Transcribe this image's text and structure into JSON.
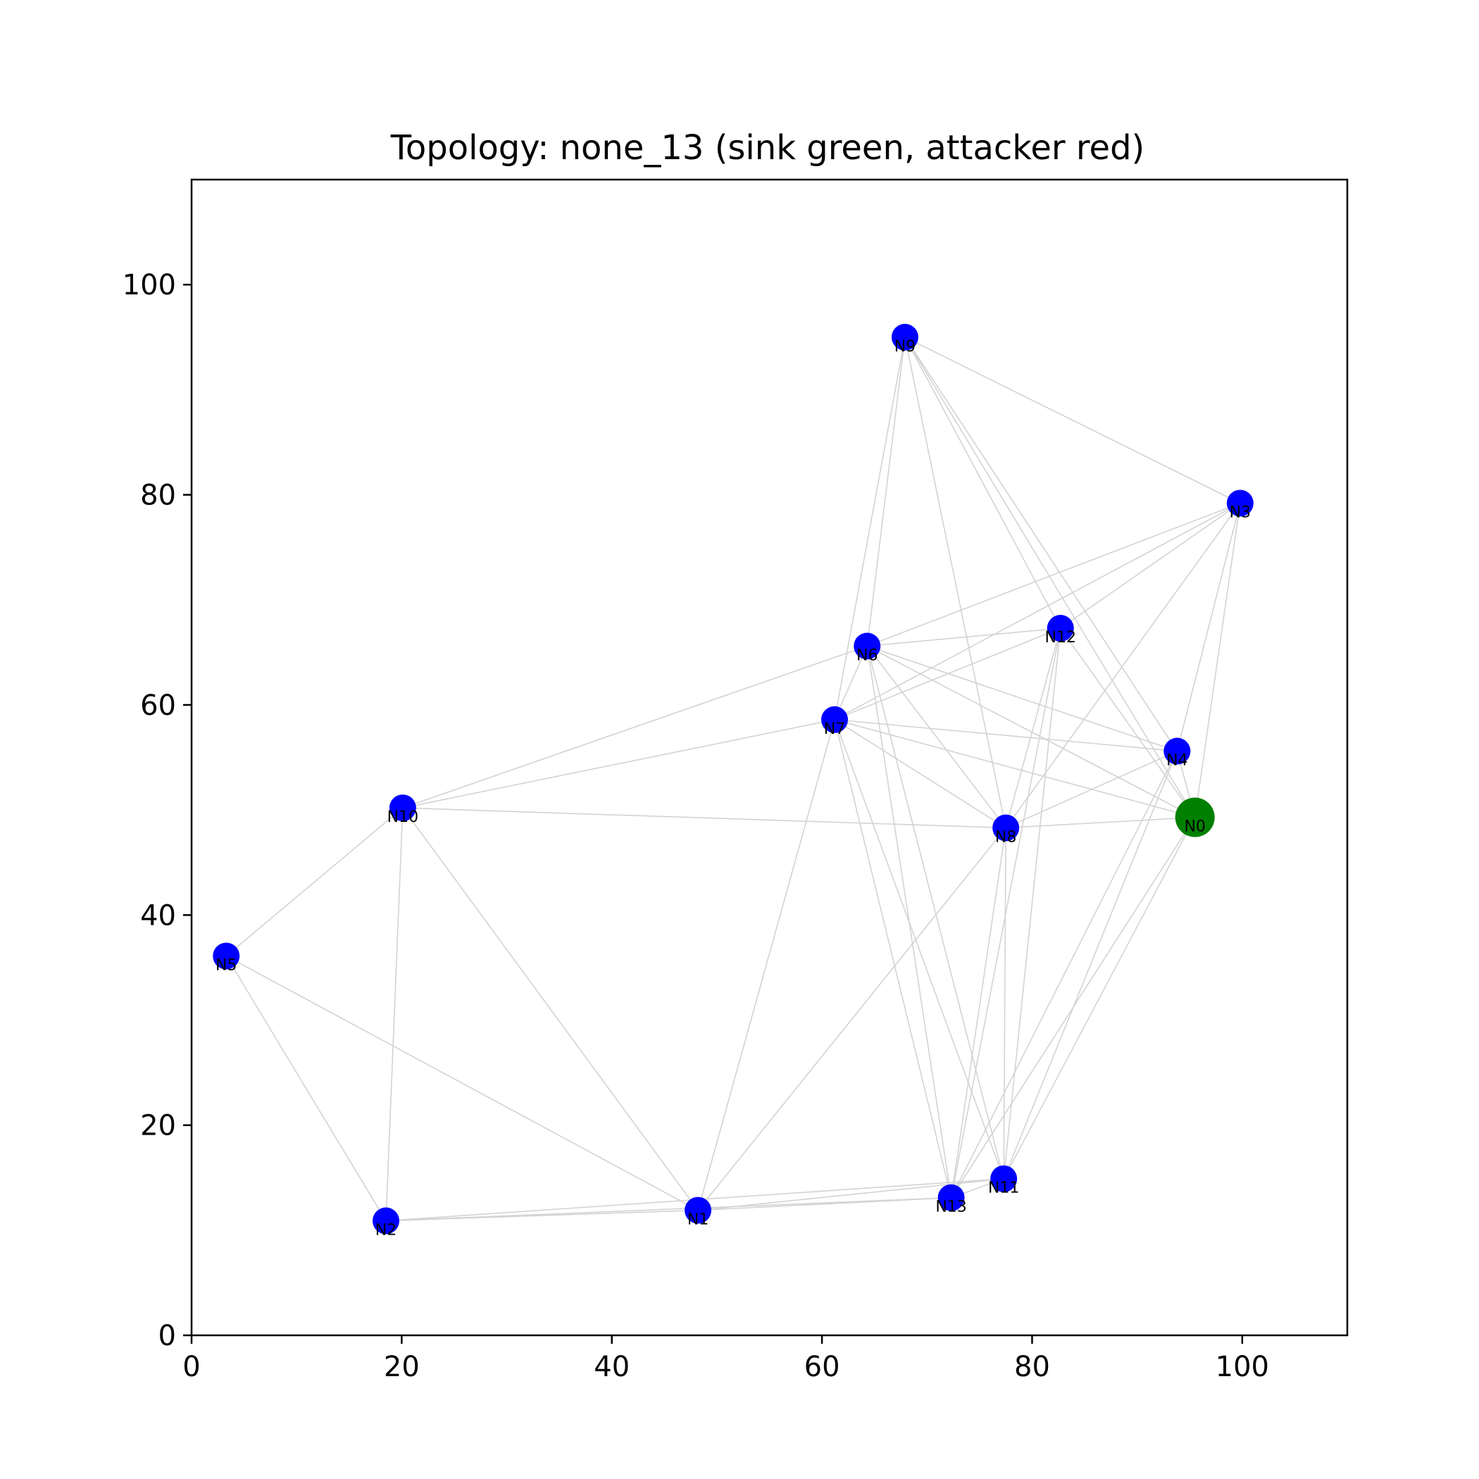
{
  "chart_data": {
    "type": "scatter",
    "title": "Topology: none_13 (sink green, attacker red)",
    "xlabel": "",
    "ylabel": "",
    "xlim": [
      0,
      110
    ],
    "ylim": [
      0,
      110
    ],
    "xticks": [
      "0",
      "20",
      "40",
      "60",
      "80",
      "100"
    ],
    "yticks": [
      "0",
      "20",
      "40",
      "60",
      "80",
      "100"
    ],
    "grid": false,
    "colors": {
      "node": "#0000ff",
      "sink": "#008000",
      "edge": "#d3d3d3",
      "axis": "#000000"
    },
    "nodes": [
      {
        "id": "N0",
        "x": 95.5,
        "y": 49.3,
        "role": "sink"
      },
      {
        "id": "N1",
        "x": 48.2,
        "y": 11.9,
        "role": "node"
      },
      {
        "id": "N2",
        "x": 18.5,
        "y": 10.9,
        "role": "node"
      },
      {
        "id": "N3",
        "x": 99.8,
        "y": 79.2,
        "role": "node"
      },
      {
        "id": "N4",
        "x": 93.8,
        "y": 55.6,
        "role": "node"
      },
      {
        "id": "N5",
        "x": 3.3,
        "y": 36.1,
        "role": "node"
      },
      {
        "id": "N6",
        "x": 64.3,
        "y": 65.6,
        "role": "node"
      },
      {
        "id": "N7",
        "x": 61.2,
        "y": 58.6,
        "role": "node"
      },
      {
        "id": "N8",
        "x": 77.5,
        "y": 48.3,
        "role": "node"
      },
      {
        "id": "N9",
        "x": 67.9,
        "y": 95.0,
        "role": "node"
      },
      {
        "id": "N10",
        "x": 20.1,
        "y": 50.2,
        "role": "node"
      },
      {
        "id": "N11",
        "x": 77.3,
        "y": 14.9,
        "role": "node"
      },
      {
        "id": "N12",
        "x": 82.7,
        "y": 67.3,
        "role": "node"
      },
      {
        "id": "N13",
        "x": 72.3,
        "y": 13.1,
        "role": "node"
      }
    ],
    "edges": [
      [
        "N9",
        "N6"
      ],
      [
        "N9",
        "N7"
      ],
      [
        "N9",
        "N8"
      ],
      [
        "N9",
        "N3"
      ],
      [
        "N9",
        "N4"
      ],
      [
        "N9",
        "N0"
      ],
      [
        "N9",
        "N12"
      ],
      [
        "N3",
        "N6"
      ],
      [
        "N3",
        "N7"
      ],
      [
        "N3",
        "N12"
      ],
      [
        "N3",
        "N4"
      ],
      [
        "N3",
        "N0"
      ],
      [
        "N3",
        "N8"
      ],
      [
        "N12",
        "N6"
      ],
      [
        "N12",
        "N7"
      ],
      [
        "N12",
        "N0"
      ],
      [
        "N12",
        "N13"
      ],
      [
        "N12",
        "N11"
      ],
      [
        "N12",
        "N8"
      ],
      [
        "N6",
        "N7"
      ],
      [
        "N6",
        "N4"
      ],
      [
        "N6",
        "N0"
      ],
      [
        "N6",
        "N8"
      ],
      [
        "N6",
        "N13"
      ],
      [
        "N6",
        "N11"
      ],
      [
        "N6",
        "N10"
      ],
      [
        "N7",
        "N4"
      ],
      [
        "N7",
        "N0"
      ],
      [
        "N7",
        "N8"
      ],
      [
        "N7",
        "N13"
      ],
      [
        "N7",
        "N11"
      ],
      [
        "N7",
        "N1"
      ],
      [
        "N7",
        "N10"
      ],
      [
        "N4",
        "N8"
      ],
      [
        "N4",
        "N13"
      ],
      [
        "N4",
        "N11"
      ],
      [
        "N4",
        "N0"
      ],
      [
        "N8",
        "N0"
      ],
      [
        "N8",
        "N13"
      ],
      [
        "N8",
        "N11"
      ],
      [
        "N8",
        "N1"
      ],
      [
        "N8",
        "N10"
      ],
      [
        "N0",
        "N13"
      ],
      [
        "N0",
        "N11"
      ],
      [
        "N10",
        "N5"
      ],
      [
        "N10",
        "N2"
      ],
      [
        "N10",
        "N1"
      ],
      [
        "N5",
        "N2"
      ],
      [
        "N5",
        "N1"
      ],
      [
        "N2",
        "N1"
      ],
      [
        "N2",
        "N13"
      ],
      [
        "N2",
        "N11"
      ],
      [
        "N1",
        "N13"
      ],
      [
        "N1",
        "N11"
      ],
      [
        "N13",
        "N11"
      ]
    ]
  }
}
